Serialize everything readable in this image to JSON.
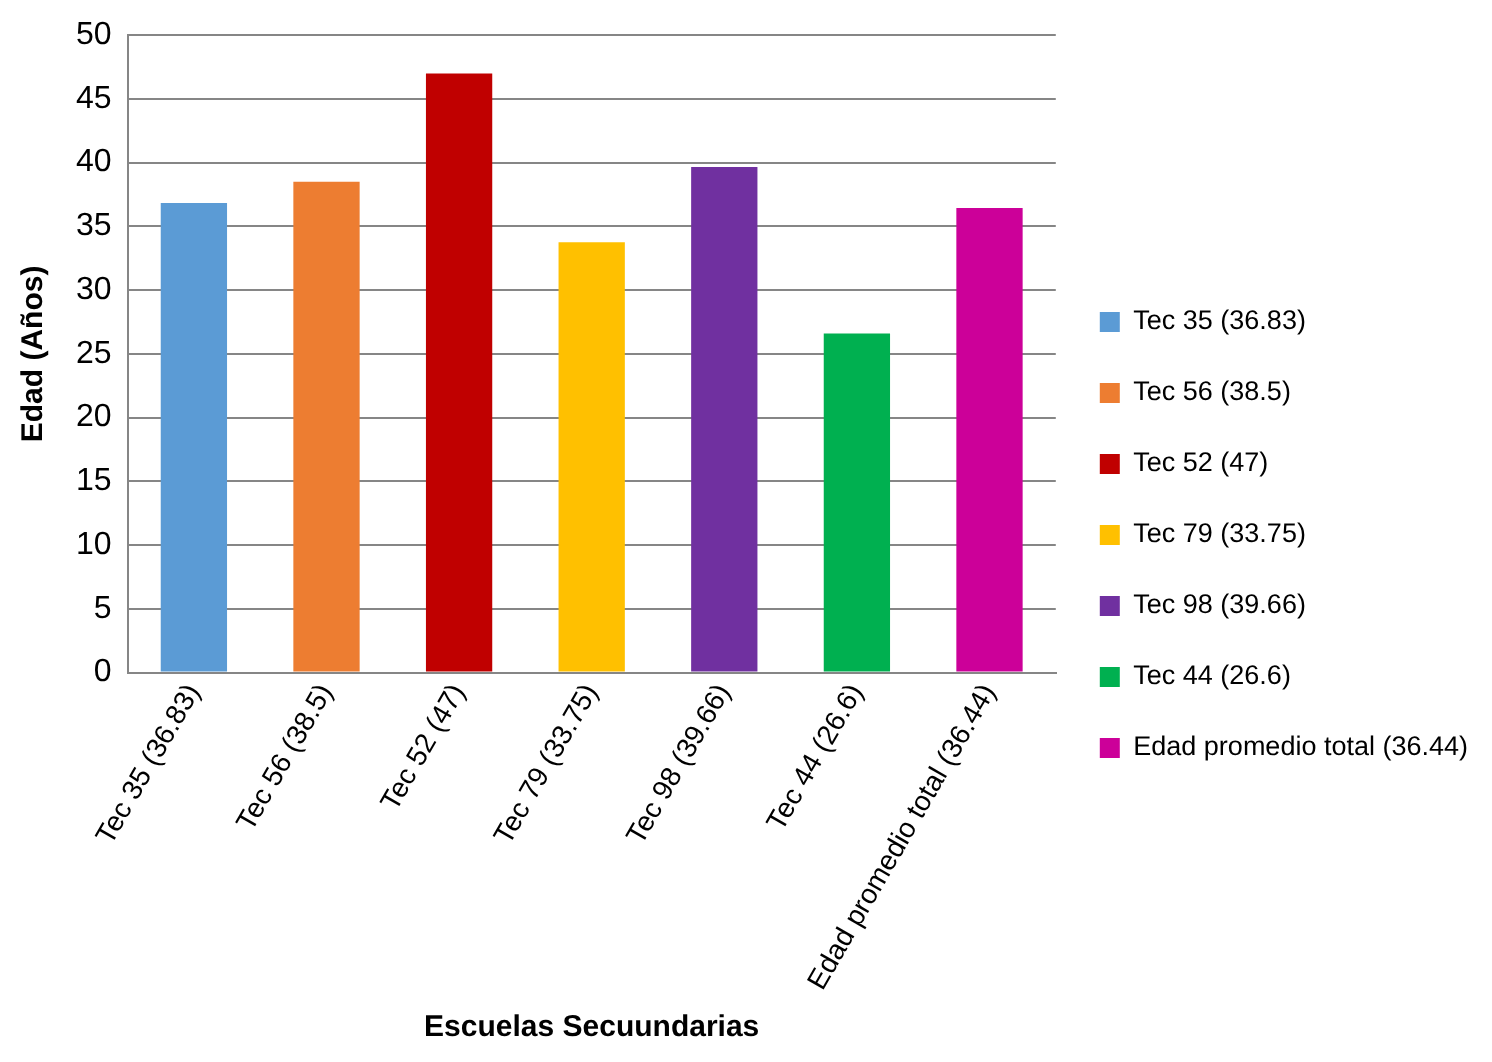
{
  "chart_data": {
    "type": "bar",
    "xlabel": "Escuelas Secuundarias",
    "ylabel": "Edad (Años)",
    "categories": [
      "Tec 35 (36.83)",
      "Tec 56 (38.5)",
      "Tec 52 (47)",
      "Tec 79 (33.75)",
      "Tec 98 (39.66)",
      "Tec 44 (26.6)",
      "Edad promedio total (36.44)"
    ],
    "series": [
      {
        "name": "Tec 35 (36.83)",
        "color": "#5b9bd5",
        "values": [
          36.83,
          null,
          null,
          null,
          null,
          null,
          null
        ]
      },
      {
        "name": "Tec 56 (38.5)",
        "color": "#ed7d31",
        "values": [
          null,
          38.5,
          null,
          null,
          null,
          null,
          null
        ]
      },
      {
        "name": "Tec 52 (47)",
        "color": "#c00000",
        "values": [
          null,
          null,
          47,
          null,
          null,
          null,
          null
        ]
      },
      {
        "name": "Tec 79 (33.75)",
        "color": "#ffc000",
        "values": [
          null,
          null,
          null,
          33.75,
          null,
          null,
          null
        ]
      },
      {
        "name": "Tec 98 (39.66)",
        "color": "#7030a0",
        "values": [
          null,
          null,
          null,
          null,
          39.66,
          null,
          null
        ]
      },
      {
        "name": "Tec 44 (26.6)",
        "color": "#00b050",
        "values": [
          null,
          null,
          null,
          null,
          null,
          26.6,
          null
        ]
      },
      {
        "name": "Edad promedio total (36.44)",
        "color": "#cc0099",
        "values": [
          null,
          null,
          null,
          null,
          null,
          null,
          36.44
        ]
      }
    ],
    "ylim": [
      0,
      50
    ],
    "yticks": [
      0,
      5,
      10,
      15,
      20,
      25,
      30,
      35,
      40,
      45,
      50
    ],
    "grid": "y",
    "legend": "right"
  }
}
